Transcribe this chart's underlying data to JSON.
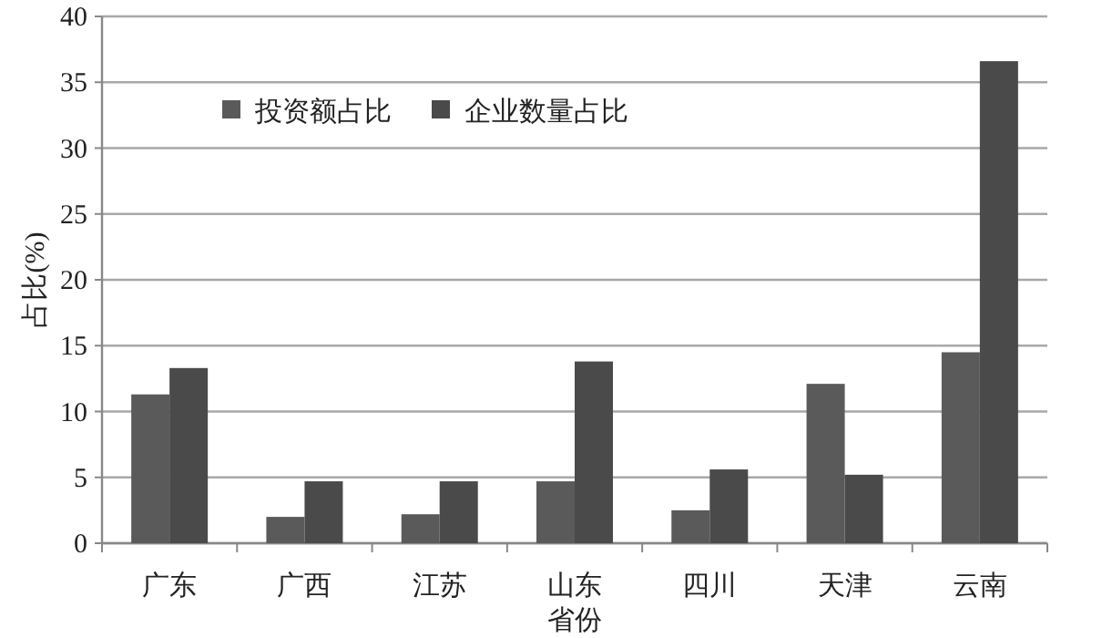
{
  "chart_data": {
    "type": "bar",
    "xlabel": "省份",
    "ylabel": "占比(%)",
    "categories": [
      "广东",
      "广西",
      "江苏",
      "山东",
      "四川",
      "天津",
      "云南"
    ],
    "series": [
      {
        "name": "投资额占比",
        "color": "#5a5a5a",
        "values": [
          11.3,
          2.0,
          2.2,
          4.7,
          2.5,
          12.1,
          14.5
        ]
      },
      {
        "name": "企业数量占比",
        "color": "#4a4a4a",
        "values": [
          13.3,
          4.7,
          4.7,
          13.8,
          5.6,
          5.2,
          36.6
        ]
      }
    ],
    "ylim": [
      0,
      40
    ],
    "yticks": [
      0,
      5,
      10,
      15,
      20,
      25,
      30,
      35,
      40
    ],
    "grid": "y",
    "legend": "top"
  }
}
